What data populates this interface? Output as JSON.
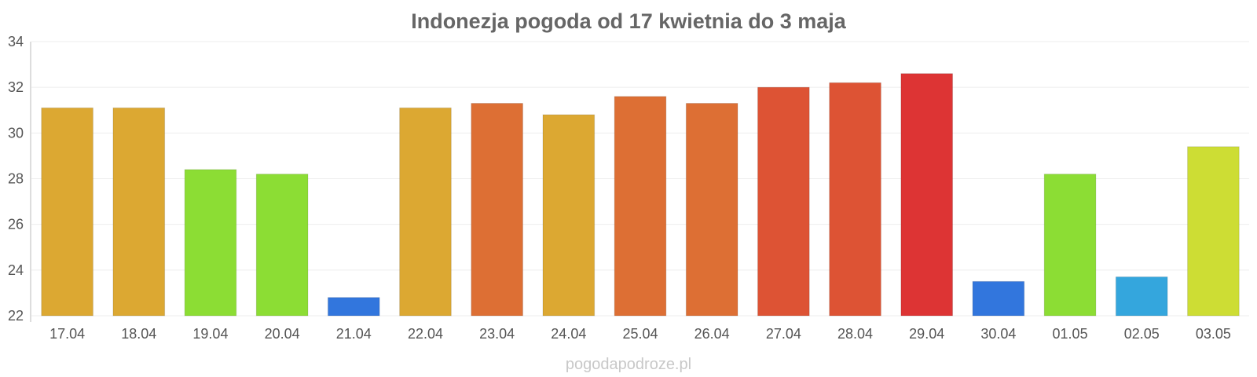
{
  "chart_data": {
    "type": "bar",
    "title": "Indonezja pogoda od 17 kwietnia do 3 maja",
    "xlabel": "",
    "ylabel": "",
    "categories": [
      "17.04",
      "18.04",
      "19.04",
      "20.04",
      "21.04",
      "22.04",
      "23.04",
      "24.04",
      "25.04",
      "26.04",
      "27.04",
      "28.04",
      "29.04",
      "30.04",
      "01.05",
      "02.05",
      "03.05"
    ],
    "values": [
      31.1,
      31.1,
      28.4,
      28.2,
      22.8,
      31.1,
      31.3,
      30.8,
      31.6,
      31.3,
      32.0,
      32.2,
      32.6,
      23.5,
      28.2,
      23.7,
      29.4
    ],
    "colors": [
      "#dca832",
      "#dca832",
      "#8cdd34",
      "#8cdd34",
      "#3276dd",
      "#dca832",
      "#dd6f34",
      "#dca832",
      "#dd6f34",
      "#dd6f34",
      "#dd5334",
      "#dd5334",
      "#dd3434",
      "#3276dd",
      "#8cdd34",
      "#34a6dd",
      "#cddd34"
    ],
    "ylim": [
      22,
      34
    ],
    "yticks": [
      22,
      24,
      26,
      28,
      30,
      32,
      34
    ],
    "grid": true,
    "legend": "none"
  },
  "footer": {
    "watermark": "pogodapodroze.pl"
  }
}
